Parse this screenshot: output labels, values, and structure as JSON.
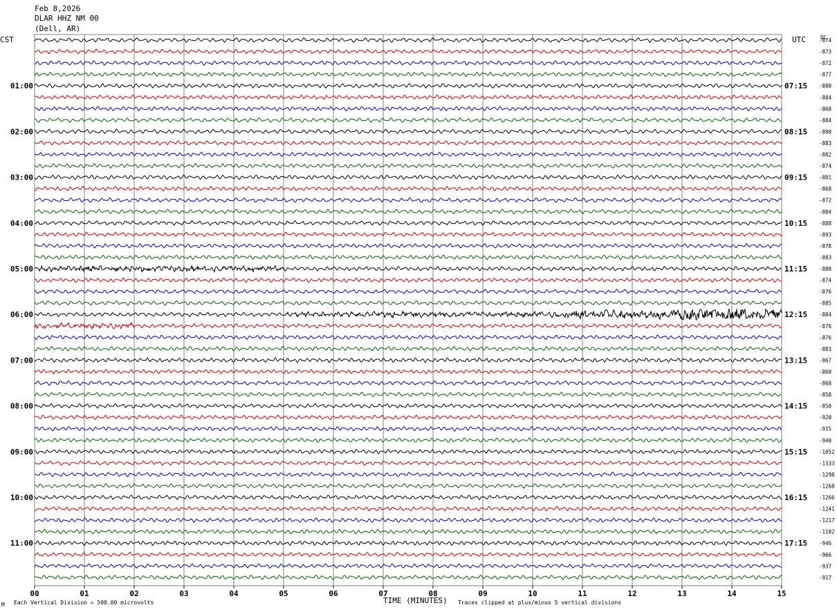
{
  "header": {
    "date": "Feb 8,2026",
    "station": "DLAR HHZ NM 00",
    "location": "(Dell, AR)"
  },
  "left_timezone": "CST",
  "right_timezone": "UTC",
  "dc_label": "DC",
  "footer": {
    "scale_text": "Each Vertical Division =  500.00 microvolts",
    "clip_text": "Traces clipped at plus/minus 5 vertical divisions",
    "logo_mark": "M"
  },
  "colors": {
    "trace_cycle": [
      "#000000",
      "#d40000",
      "#0000cc",
      "#006400"
    ],
    "grid": "#808080",
    "background": "#ffffff"
  },
  "chart_data": {
    "type": "line",
    "title": "",
    "xlabel": "TIME (MINUTES)",
    "ylabel": "",
    "xlim": [
      0,
      15
    ],
    "x_ticks": [
      "00",
      "01",
      "02",
      "03",
      "04",
      "05",
      "06",
      "07",
      "08",
      "09",
      "10",
      "11",
      "12",
      "13",
      "14",
      "15"
    ],
    "grid": true,
    "trace_minutes": 15,
    "trace_count": 48,
    "cst_hour_labels": [
      "",
      "01:00",
      "02:00",
      "03:00",
      "04:00",
      "05:00",
      "06:00",
      "07:00",
      "08:00",
      "09:00",
      "10:00",
      "11:00"
    ],
    "utc_hour_labels": [
      "",
      "07:15",
      "08:15",
      "09:15",
      "10:15",
      "11:15",
      "12:15",
      "13:15",
      "14:15",
      "15:15",
      "16:15",
      "17:15"
    ],
    "dc_offsets": [
      -874,
      -873,
      -872,
      -877,
      -880,
      -884,
      -868,
      -884,
      -880,
      -883,
      -882,
      -874,
      -881,
      -868,
      -872,
      -884,
      -888,
      -893,
      -878,
      -883,
      -880,
      -874,
      -876,
      -885,
      -884,
      -876,
      -876,
      -883,
      -867,
      -860,
      -868,
      -858,
      -858,
      -920,
      -915,
      -940,
      -1052,
      -1333,
      -1298,
      -1268,
      -1266,
      -1241,
      -1217,
      -1182,
      -946,
      -966,
      -937,
      -917
    ],
    "events": [
      {
        "trace": 20,
        "start_minute": 0.0,
        "end_minute": 5.0,
        "description": "elevated noise"
      },
      {
        "trace": 24,
        "start_minute": 5.0,
        "end_minute": 15.0,
        "description": "earthquake signal"
      },
      {
        "trace": 25,
        "start_minute": 0.0,
        "end_minute": 2.0,
        "description": "elevated noise"
      }
    ]
  }
}
